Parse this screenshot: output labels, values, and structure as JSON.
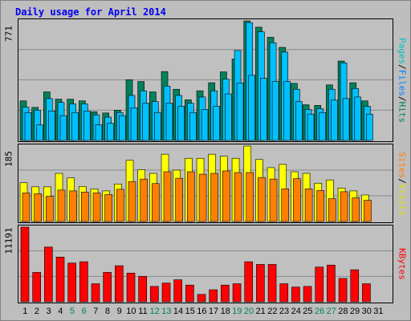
{
  "title": "Daily usage for April 2014",
  "colors": {
    "background": "#bebebe",
    "panel": "#c0c0c0",
    "hits": "#00805c",
    "files": "#00c0ff",
    "visits": "#ffff00",
    "sites": "#ff8000",
    "kbytes": "#ff0000",
    "weekend_label": "#00805c",
    "title": "#0000ee"
  },
  "chart_data": [
    {
      "type": "bar",
      "panel": "top",
      "ymax_label": "771",
      "ylim": [
        0,
        771
      ],
      "label_parts": [
        "Pages",
        "Files",
        "Hits"
      ],
      "label_colors": [
        "#00c0c0",
        "#0080ff",
        "#00805c"
      ],
      "categories": [
        "1",
        "2",
        "3",
        "4",
        "5",
        "6",
        "7",
        "8",
        "9",
        "10",
        "11",
        "12",
        "13",
        "14",
        "15",
        "16",
        "17",
        "18",
        "19",
        "20",
        "21",
        "22",
        "23",
        "24",
        "25",
        "26",
        "27",
        "28",
        "29",
        "30",
        "31"
      ],
      "series": [
        {
          "key": "hits",
          "values": [
            255,
            213,
            313,
            266,
            266,
            255,
            185,
            177,
            195,
            392,
            380,
            313,
            444,
            330,
            262,
            320,
            372,
            442,
            525,
            771,
            730,
            665,
            600,
            368,
            230,
            226,
            358,
            512,
            372,
            255,
            0
          ]
        },
        {
          "key": "files",
          "values": [
            215,
            195,
            270,
            245,
            236,
            236,
            165,
            150,
            180,
            290,
            320,
            250,
            350,
            290,
            240,
            280,
            320,
            395,
            580,
            760,
            700,
            630,
            570,
            330,
            200,
            205,
            330,
            500,
            335,
            220,
            0
          ]
        },
        {
          "key": "pages",
          "values": [
            180,
            100,
            190,
            160,
            180,
            190,
            100,
            110,
            160,
            210,
            240,
            180,
            240,
            220,
            180,
            200,
            220,
            300,
            370,
            420,
            400,
            380,
            380,
            250,
            170,
            180,
            260,
            270,
            280,
            170,
            0
          ]
        }
      ]
    },
    {
      "type": "bar",
      "panel": "middle",
      "ymax_label": "185",
      "ylim": [
        0,
        185
      ],
      "label_parts": [
        "Sites",
        "Visits"
      ],
      "label_colors": [
        "#ff8000",
        "#e0e000"
      ],
      "categories": [
        "1",
        "2",
        "3",
        "4",
        "5",
        "6",
        "7",
        "8",
        "9",
        "10",
        "11",
        "12",
        "13",
        "14",
        "15",
        "16",
        "17",
        "18",
        "19",
        "20",
        "21",
        "22",
        "23",
        "24",
        "25",
        "26",
        "27",
        "28",
        "29",
        "30",
        "31"
      ],
      "series": [
        {
          "key": "visits",
          "values": [
            95,
            85,
            85,
            118,
            107,
            86,
            80,
            75,
            92,
            150,
            127,
            118,
            165,
            126,
            155,
            155,
            165,
            160,
            155,
            185,
            152,
            132,
            140,
            122,
            118,
            94,
            102,
            82,
            75,
            65,
            0
          ]
        },
        {
          "key": "sites",
          "values": [
            70,
            68,
            62,
            77,
            75,
            72,
            70,
            66,
            79,
            98,
            104,
            93,
            122,
            106,
            122,
            116,
            118,
            124,
            120,
            120,
            108,
            104,
            80,
            105,
            80,
            76,
            56,
            73,
            58,
            52,
            0
          ]
        }
      ]
    },
    {
      "type": "bar",
      "panel": "bottom",
      "ymax_label": "11191",
      "ylim": [
        0,
        11191
      ],
      "label_parts": [
        "KBytes"
      ],
      "label_colors": [
        "#ff0000"
      ],
      "categories": [
        "1",
        "2",
        "3",
        "4",
        "5",
        "6",
        "7",
        "8",
        "9",
        "10",
        "11",
        "12",
        "13",
        "14",
        "15",
        "16",
        "17",
        "18",
        "19",
        "20",
        "21",
        "22",
        "23",
        "24",
        "25",
        "26",
        "27",
        "28",
        "29",
        "30",
        "31"
      ],
      "series": [
        {
          "key": "kbytes",
          "values": [
            11191,
            4400,
            8200,
            6700,
            5800,
            6000,
            2700,
            4400,
            5400,
            4300,
            3800,
            2300,
            2800,
            3300,
            2500,
            1100,
            1800,
            2500,
            2700,
            6000,
            5600,
            5600,
            2700,
            2200,
            2300,
            5200,
            5500,
            3500,
            4800,
            2700,
            0
          ]
        }
      ]
    }
  ],
  "x_labels": [
    {
      "text": "1",
      "weekend": false
    },
    {
      "text": "2",
      "weekend": false
    },
    {
      "text": "3",
      "weekend": false
    },
    {
      "text": "4",
      "weekend": false
    },
    {
      "text": "5",
      "weekend": true
    },
    {
      "text": "6",
      "weekend": true
    },
    {
      "text": "7",
      "weekend": false
    },
    {
      "text": "8",
      "weekend": false
    },
    {
      "text": "9",
      "weekend": false
    },
    {
      "text": "10",
      "weekend": false
    },
    {
      "text": "11",
      "weekend": false
    },
    {
      "text": "12",
      "weekend": true
    },
    {
      "text": "13",
      "weekend": true
    },
    {
      "text": "14",
      "weekend": false
    },
    {
      "text": "15",
      "weekend": false
    },
    {
      "text": "16",
      "weekend": false
    },
    {
      "text": "17",
      "weekend": false
    },
    {
      "text": "18",
      "weekend": false
    },
    {
      "text": "19",
      "weekend": true
    },
    {
      "text": "20",
      "weekend": true
    },
    {
      "text": "21",
      "weekend": false
    },
    {
      "text": "22",
      "weekend": false
    },
    {
      "text": "23",
      "weekend": false
    },
    {
      "text": "24",
      "weekend": false
    },
    {
      "text": "25",
      "weekend": false
    },
    {
      "text": "26",
      "weekend": true
    },
    {
      "text": "27",
      "weekend": true
    },
    {
      "text": "28",
      "weekend": false
    },
    {
      "text": "29",
      "weekend": false
    },
    {
      "text": "30",
      "weekend": false
    },
    {
      "text": "31",
      "weekend": false
    }
  ]
}
